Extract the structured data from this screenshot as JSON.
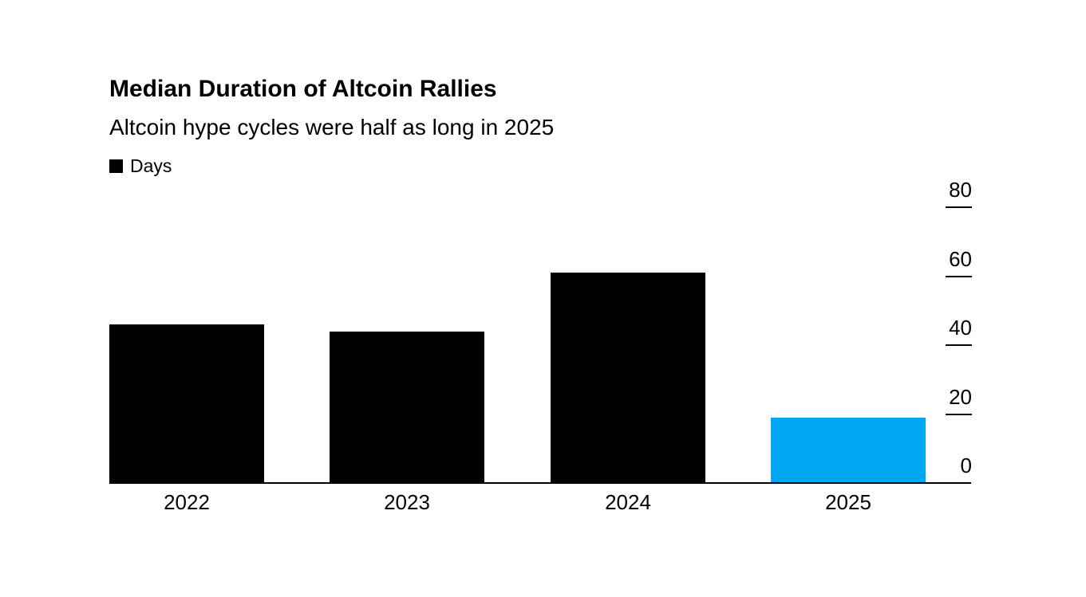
{
  "page": {
    "background_color": "#ffffff",
    "text_color": "#000000"
  },
  "header": {
    "title": "Median Duration of Altcoin Rallies",
    "subtitle": "Altcoin hype cycles were half as long in 2025"
  },
  "legend": {
    "items": [
      {
        "label": "Days",
        "color": "#000000"
      }
    ]
  },
  "chart_data": {
    "type": "bar",
    "title": "Median Duration of Altcoin Rallies",
    "subtitle": "Altcoin hype cycles were half as long in 2025",
    "series_name": "Days",
    "categories": [
      "2022",
      "2023",
      "2024",
      "2025"
    ],
    "values": [
      46,
      44,
      61,
      19
    ],
    "bar_colors": [
      "#000000",
      "#000000",
      "#000000",
      "#00a8f1"
    ],
    "highlighted_category": "2025",
    "highlight_color": "#00a8f1",
    "xlabel": "",
    "ylabel": "Days",
    "yticks": [
      0,
      20,
      40,
      60,
      80
    ],
    "ylim": [
      0,
      80
    ],
    "grid": false,
    "legend_position": "top-left",
    "y_axis_side": "right",
    "axis_color": "#000000"
  }
}
